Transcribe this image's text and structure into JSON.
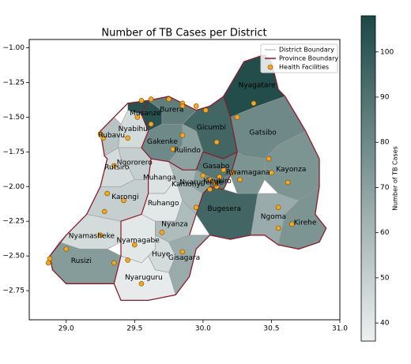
{
  "chart_data": {
    "type": "choropleth",
    "title": "Number of TB Cases per District",
    "districts": [
      "Nyagatare",
      "Gatsibo",
      "Kayonza",
      "Rwamagana",
      "Gasabo",
      "Nyarugenge",
      "Kicukiro",
      "Bugesera",
      "Ngoma",
      "Kirehe",
      "Gicumbi",
      "Rulindo",
      "Gakenke",
      "Musanze",
      "Burera",
      "Rubavu",
      "Nyabihu",
      "Ngororero",
      "Rutsiro",
      "Karongi",
      "Muhanga",
      "Kamonyi",
      "Ruhango",
      "Nyanza",
      "Huye",
      "Gisagara",
      "Nyamagabe",
      "Nyaruguru",
      "Nyamasheke",
      "Rusizi"
    ],
    "values": [
      106,
      80,
      75,
      75,
      88,
      70,
      85,
      95,
      65,
      75,
      95,
      70,
      80,
      104,
      85,
      55,
      45,
      50,
      45,
      50,
      42,
      60,
      40,
      58,
      45,
      65,
      40,
      38,
      45,
      72
    ],
    "cmap": [
      "#eef0f0",
      "#1c4845"
    ],
    "clim": [
      36,
      108
    ],
    "colorbar_label": "Number of TB Cases",
    "colorbar_ticks": [
      40,
      50,
      60,
      70,
      80,
      90,
      100
    ],
    "xlim": [
      28.73,
      31.0
    ],
    "ylim": [
      -2.96,
      -0.94
    ],
    "xticks": [
      {
        "value": 29.0,
        "label": "29.0"
      },
      {
        "value": 29.5,
        "label": "29.5"
      },
      {
        "value": 30.0,
        "label": "30.0"
      },
      {
        "value": 30.5,
        "label": "30.5"
      },
      {
        "value": 31.0,
        "label": "31.0"
      }
    ],
    "yticks": [
      {
        "value": -1.0,
        "label": "−1.00"
      },
      {
        "value": -1.25,
        "label": "−1.25"
      },
      {
        "value": -1.5,
        "label": "−1.50"
      },
      {
        "value": -1.75,
        "label": "−1.75"
      },
      {
        "value": -2.0,
        "label": "−2.00"
      },
      {
        "value": -2.25,
        "label": "−2.25"
      },
      {
        "value": -2.5,
        "label": "−2.50"
      },
      {
        "value": -2.75,
        "label": "−2.75"
      }
    ],
    "legend": {
      "corner": "upper right",
      "entries": [
        {
          "name": "District Boundary",
          "color": "#aaaaaa"
        },
        {
          "name": "Province Boundary",
          "color": "#8b1a2b"
        },
        {
          "name": "Health Facilities",
          "color": "#f5a623"
        }
      ]
    },
    "facilities": {
      "x": [
        29.55,
        29.62,
        29.75,
        29.85,
        29.95,
        30.02,
        29.52,
        29.25,
        29.27,
        29.45,
        29.85,
        29.78,
        30.0,
        30.05,
        30.08,
        30.1,
        30.05,
        30.12,
        30.15,
        30.22,
        30.27,
        30.25,
        30.37,
        30.48,
        30.5,
        30.62,
        30.55,
        30.55,
        30.65,
        29.95,
        29.3,
        29.28,
        29.25,
        29.0,
        28.88,
        28.87,
        29.45,
        29.35,
        29.5,
        29.7,
        29.85,
        29.55,
        29.35,
        29.42,
        29.85,
        30.1,
        29.62
      ],
      "y": [
        -1.38,
        -1.37,
        -1.37,
        -1.4,
        -1.42,
        -1.45,
        -1.5,
        -1.62,
        -1.65,
        -1.65,
        -1.63,
        -1.73,
        -1.92,
        -1.95,
        -1.97,
        -2.0,
        -2.02,
        -1.93,
        -1.88,
        -1.9,
        -1.95,
        -1.5,
        -1.4,
        -1.8,
        -1.9,
        -1.97,
        -2.15,
        -2.3,
        -2.27,
        -2.15,
        -2.05,
        -2.18,
        -2.35,
        -2.45,
        -2.52,
        -2.55,
        -2.53,
        -2.55,
        -2.42,
        -2.33,
        -2.47,
        -2.7,
        -1.85,
        -2.1,
        -1.42,
        -1.68,
        -1.55
      ]
    }
  }
}
